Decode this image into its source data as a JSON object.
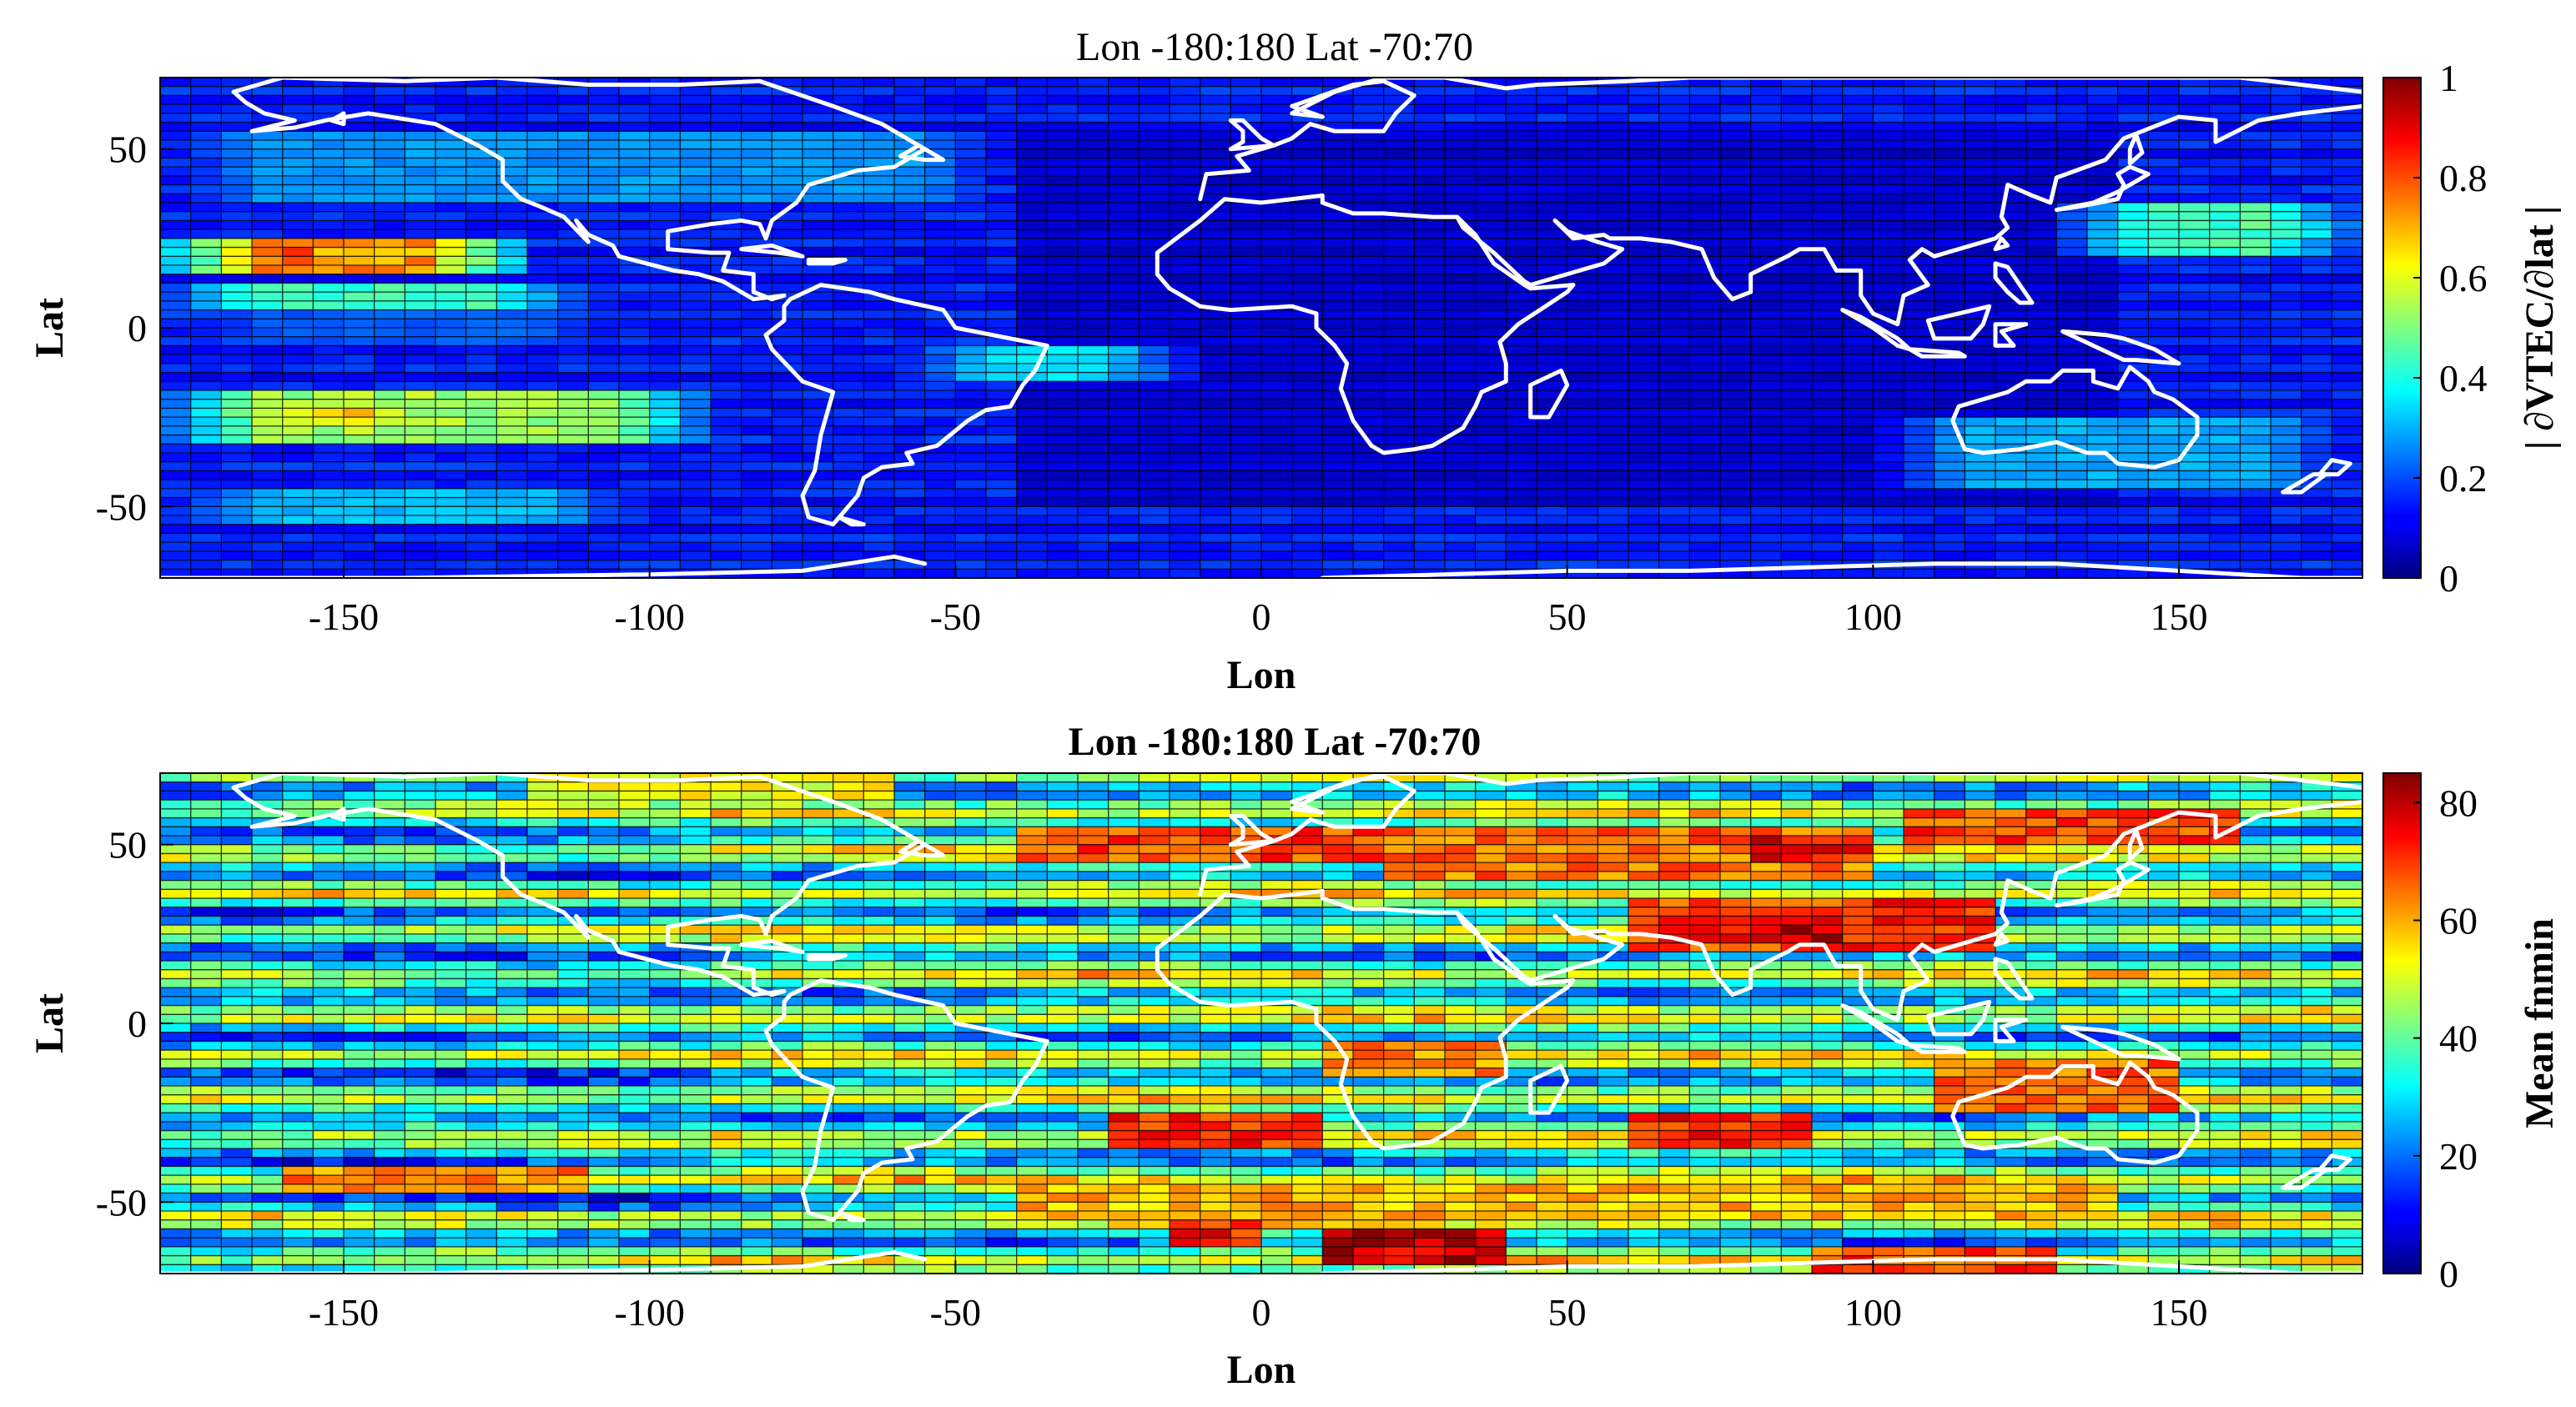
{
  "chart_data": [
    {
      "type": "heatmap",
      "title": "Lon -180:180  Lat -70:70",
      "xlabel": "Lon",
      "ylabel": "Lat",
      "colorbar_label": "| ∂VTEC/∂lat |",
      "xlim": [
        -180,
        180
      ],
      "ylim": [
        -70,
        70
      ],
      "xticks": [
        -150,
        -100,
        -50,
        0,
        50,
        100,
        150
      ],
      "xtick_labels": [
        "-150",
        "-100",
        "-50",
        "0",
        "50",
        "100",
        "150"
      ],
      "yticks": [
        50,
        0,
        -50
      ],
      "ytick_labels": [
        "50",
        "0",
        "-50"
      ],
      "clim": [
        0,
        1
      ],
      "cticks": [
        0,
        0.2,
        0.4,
        0.6,
        0.8,
        1
      ],
      "ctick_labels": [
        "0",
        "0.2",
        "0.4",
        "0.6",
        "0.8",
        "1"
      ],
      "colormap": "jet",
      "grid_cell": [
        5,
        2.5
      ],
      "overlay": "coastlines (white)",
      "bands": [
        {
          "lat": [
            15,
            25
          ],
          "lon": [
            -180,
            -120
          ],
          "value": 0.75
        },
        {
          "lat": [
            17,
            23
          ],
          "lon": [
            -175,
            -145
          ],
          "value": 0.95
        },
        {
          "lat": [
            5,
            12
          ],
          "lon": [
            -180,
            -110
          ],
          "value": 0.45
        },
        {
          "lat": [
            -32,
            -18
          ],
          "lon": [
            -180,
            -90
          ],
          "value": 0.55
        },
        {
          "lat": [
            -28,
            -22
          ],
          "lon": [
            -170,
            -130
          ],
          "value": 0.68
        },
        {
          "lat": [
            -55,
            -45
          ],
          "lon": [
            -180,
            -100
          ],
          "value": 0.32
        },
        {
          "lat": [
            -5,
            5
          ],
          "lon": [
            -180,
            -100
          ],
          "value": 0.22
        },
        {
          "lat": [
            35,
            55
          ],
          "lon": [
            -180,
            -40
          ],
          "value": 0.28
        },
        {
          "lat": [
            -15,
            -5
          ],
          "lon": [
            -60,
            -10
          ],
          "value": 0.35
        },
        {
          "lat": [
            20,
            35
          ],
          "lon": [
            130,
            180
          ],
          "value": 0.45
        },
        {
          "lat": [
            25,
            30
          ],
          "lon": [
            150,
            180
          ],
          "value": 0.55
        },
        {
          "lat": [
            -45,
            -25
          ],
          "lon": [
            100,
            180
          ],
          "value": 0.3
        }
      ]
    },
    {
      "type": "heatmap",
      "title": "Lon -180:180  Lat -70:70",
      "xlabel": "Lon",
      "ylabel": "Lat",
      "colorbar_label": "Mean fnmin",
      "xlim": [
        -180,
        180
      ],
      "ylim": [
        -70,
        70
      ],
      "xticks": [
        -150,
        -100,
        -50,
        0,
        50,
        100,
        150
      ],
      "xtick_labels": [
        "-150",
        "-100",
        "-50",
        "0",
        "50",
        "100",
        "150"
      ],
      "yticks": [
        50,
        0,
        -50
      ],
      "ytick_labels": [
        "50",
        "0",
        "-50"
      ],
      "clim": [
        0,
        85
      ],
      "cticks": [
        0,
        20,
        40,
        60,
        80
      ],
      "ctick_labels": [
        "0",
        "20",
        "40",
        "60",
        "80"
      ],
      "colormap": "jet",
      "grid_cell": [
        5,
        2.5
      ],
      "overlay": "coastlines (white)",
      "hotspots": [
        {
          "lat": [
            45,
            55
          ],
          "lon": [
            -40,
            20
          ],
          "value": 72
        },
        {
          "lat": [
            40,
            55
          ],
          "lon": [
            20,
            100
          ],
          "value": 68
        },
        {
          "lat": [
            45,
            52
          ],
          "lon": [
            80,
            100
          ],
          "value": 78
        },
        {
          "lat": [
            20,
            35
          ],
          "lon": [
            60,
            120
          ],
          "value": 74
        },
        {
          "lat": [
            22,
            30
          ],
          "lon": [
            75,
            95
          ],
          "value": 82
        },
        {
          "lat": [
            50,
            60
          ],
          "lon": [
            105,
            160
          ],
          "value": 72
        },
        {
          "lat": [
            -15,
            -5
          ],
          "lon": [
            10,
            40
          ],
          "value": 66
        },
        {
          "lat": [
            -25,
            -10
          ],
          "lon": [
            110,
            150
          ],
          "value": 70
        },
        {
          "lat": [
            -35,
            -25
          ],
          "lon": [
            -25,
            10
          ],
          "value": 74
        },
        {
          "lat": [
            -35,
            -25
          ],
          "lon": [
            60,
            90
          ],
          "value": 76
        },
        {
          "lat": [
            -55,
            -45
          ],
          "lon": [
            -40,
            140
          ],
          "value": 62
        },
        {
          "lat": [
            -68,
            -58
          ],
          "lon": [
            10,
            40
          ],
          "value": 84
        },
        {
          "lat": [
            -62,
            -55
          ],
          "lon": [
            -15,
            0
          ],
          "value": 76
        },
        {
          "lat": [
            -48,
            -40
          ],
          "lon": [
            -160,
            -110
          ],
          "value": 66
        },
        {
          "lat": [
            -70,
            -62
          ],
          "lon": [
            90,
            130
          ],
          "value": 72
        },
        {
          "lat": [
            62,
            70
          ],
          "lon": [
            -120,
            -60
          ],
          "value": 55
        }
      ]
    }
  ]
}
